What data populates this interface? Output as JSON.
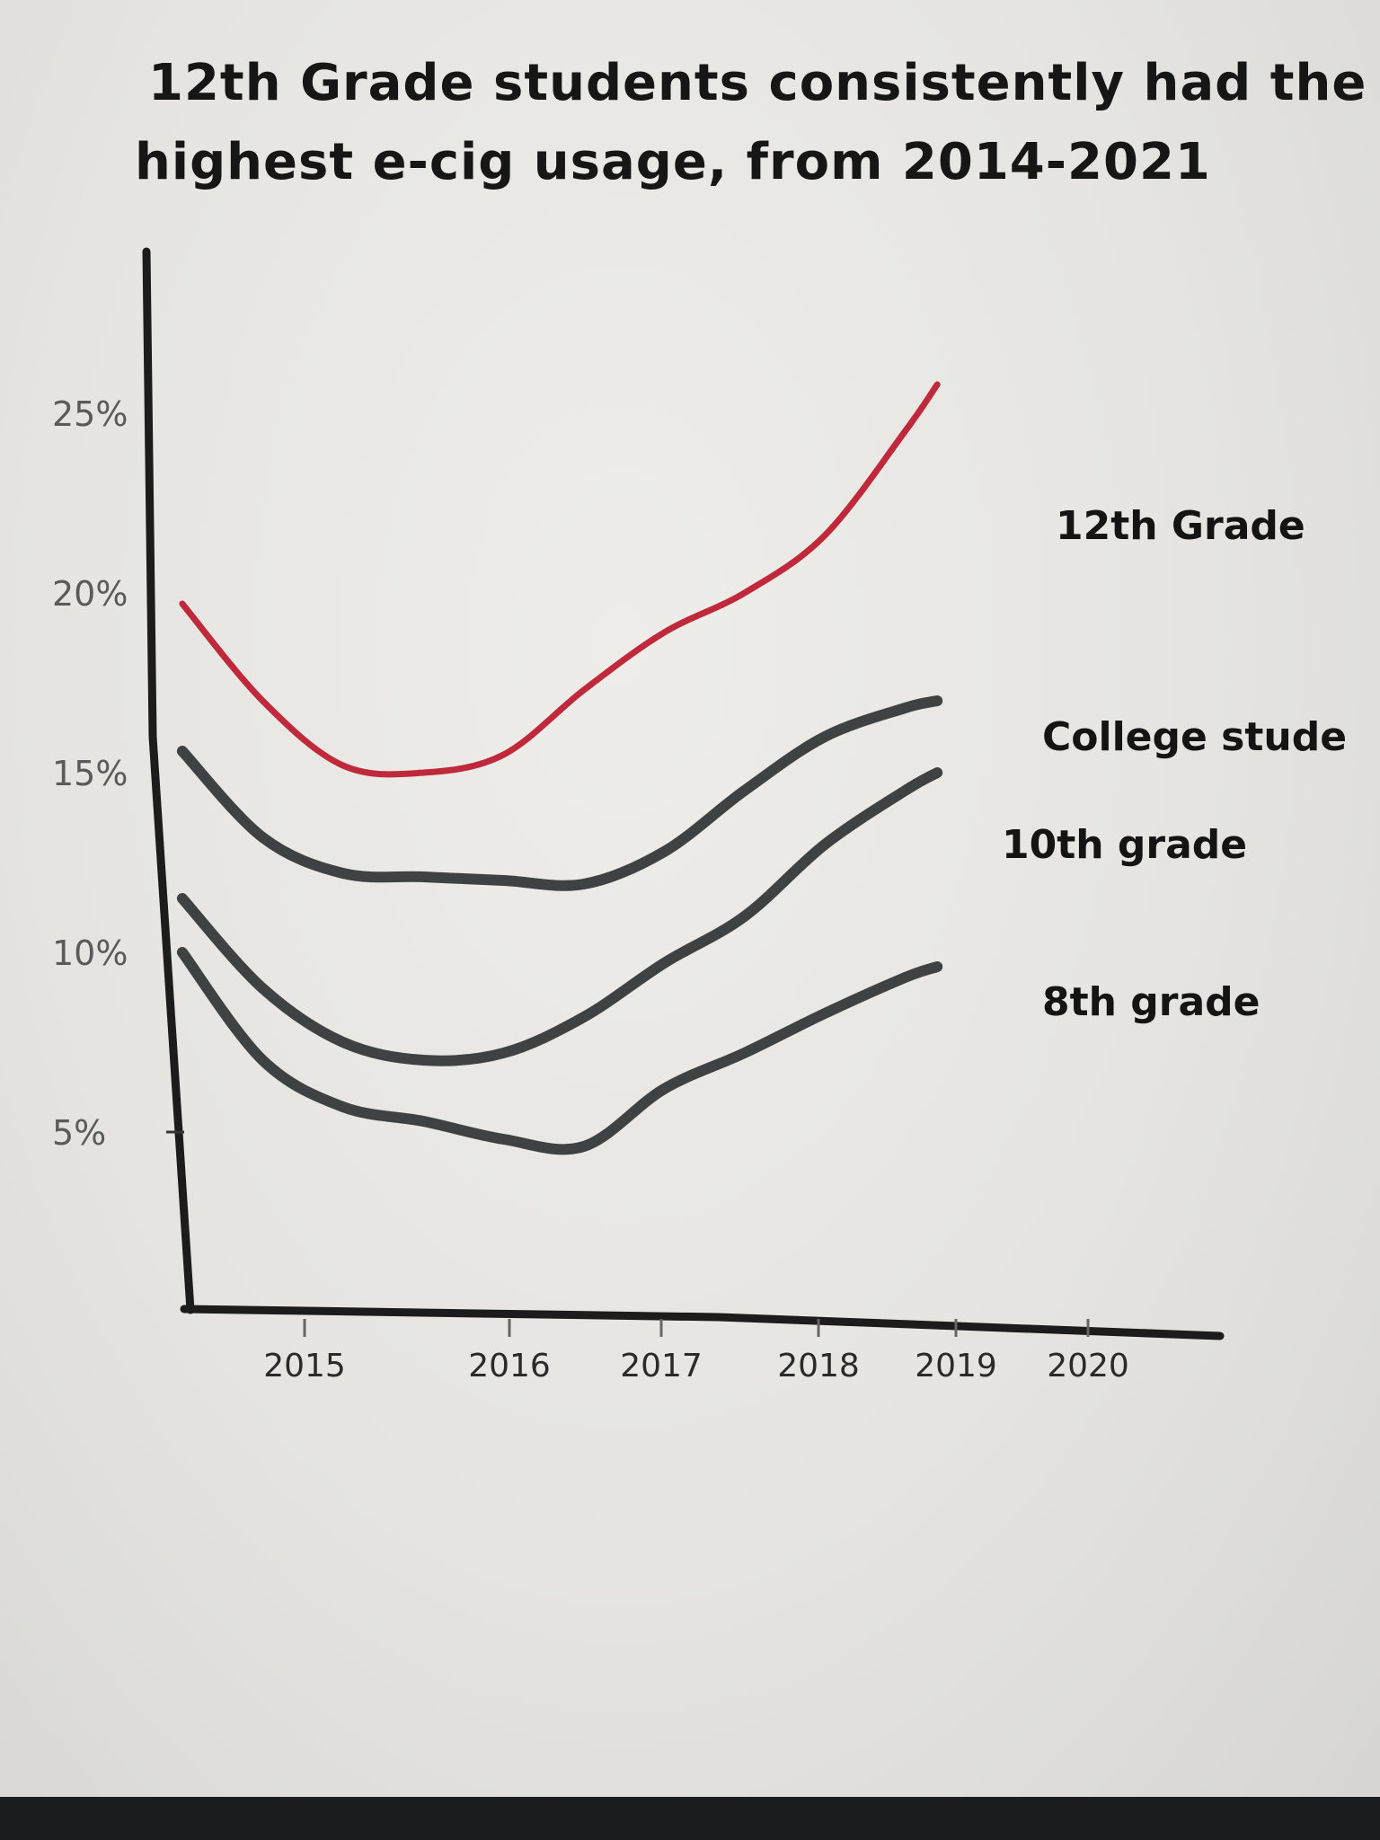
{
  "title_lines": [
    "12th Grade students consistently had the",
    "highest e-cig usage, from 2014-2021"
  ],
  "chart_data": {
    "type": "line",
    "title": "12th Grade students consistently had the highest e-cig usage, from 2014-2021",
    "xlabel": "",
    "ylabel": "",
    "x_ticks": [
      "2015",
      "2016",
      "2017",
      "2018",
      "2019",
      "2020"
    ],
    "y_ticks": [
      "5%",
      "10%",
      "15%",
      "20%",
      "25%"
    ],
    "xlim": [
      2014.4,
      2021.0
    ],
    "ylim": [
      0,
      30
    ],
    "grid": false,
    "x": [
      2014.5,
      2015.0,
      2015.5,
      2016.0,
      2016.5,
      2017.0,
      2017.5,
      2018.0,
      2018.5,
      2019.0,
      2019.2
    ],
    "series": [
      {
        "name": "12th Grade",
        "color": "#c0283c",
        "values": [
          19.7,
          17.0,
          15.2,
          15.0,
          15.5,
          17.3,
          18.9,
          20.0,
          21.6,
          24.5,
          25.8
        ]
      },
      {
        "name": "College stude",
        "color": "#3f4243",
        "values": [
          15.6,
          13.2,
          12.2,
          12.1,
          12.0,
          11.9,
          12.8,
          14.5,
          16.0,
          16.8,
          17.0
        ]
      },
      {
        "name": "10th grade",
        "color": "#3f4243",
        "values": [
          11.5,
          9.0,
          7.5,
          7.0,
          7.2,
          8.2,
          9.7,
          11.0,
          13.0,
          14.5,
          15.0
        ]
      },
      {
        "name": "8th grade",
        "color": "#3f4243",
        "values": [
          10.0,
          7.0,
          5.7,
          5.3,
          4.8,
          4.6,
          6.2,
          7.2,
          8.3,
          9.3,
          9.6
        ]
      }
    ]
  }
}
